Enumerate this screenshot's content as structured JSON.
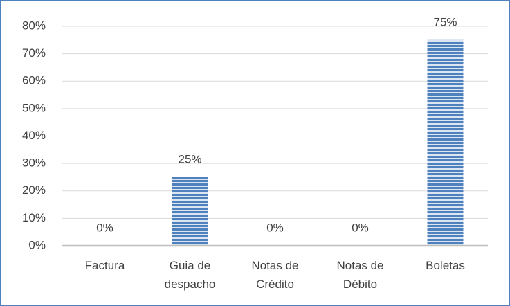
{
  "chart_data": {
    "type": "bar",
    "categories": [
      "Factura",
      "Guia de despacho",
      "Notas de Crédito",
      "Notas de Débito",
      "Boletas"
    ],
    "values": [
      0,
      25,
      0,
      0,
      75
    ],
    "value_labels": [
      "0%",
      "25%",
      "0%",
      "0%",
      "75%"
    ],
    "color": "#4f81bd",
    "ylim": [
      0,
      80
    ],
    "yticks": [
      {
        "value": 0,
        "label": "0%"
      },
      {
        "value": 10,
        "label": "10%"
      },
      {
        "value": 20,
        "label": "20%"
      },
      {
        "value": 30,
        "label": "30%"
      },
      {
        "value": 40,
        "label": "40%"
      },
      {
        "value": 50,
        "label": "50%"
      },
      {
        "value": 60,
        "label": "60%"
      },
      {
        "value": 70,
        "label": "70%"
      },
      {
        "value": 80,
        "label": "80%"
      }
    ],
    "grid": true
  }
}
